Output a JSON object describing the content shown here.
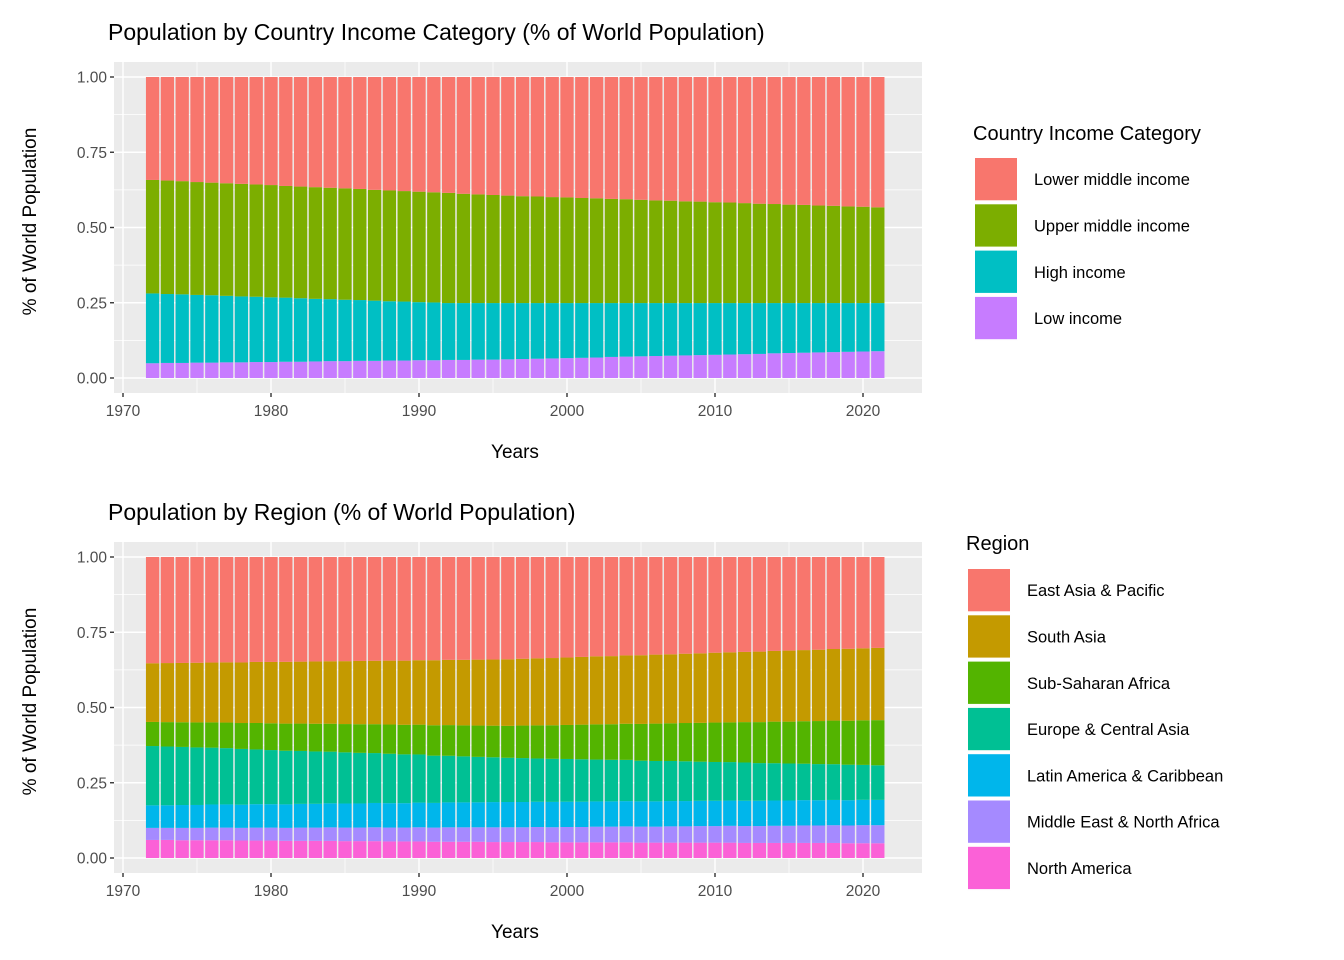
{
  "chart_data": [
    {
      "type": "bar",
      "stacked": true,
      "title": "Population by Country Income Category (% of World Population)",
      "xlabel": "Years",
      "ylabel": "% of World Population",
      "xlim": [
        1970,
        2023
      ],
      "ylim": [
        0,
        1
      ],
      "x_ticks": [
        "1970",
        "1980",
        "1990",
        "2000",
        "2010",
        "2020"
      ],
      "y_ticks": [
        "0.00",
        "0.25",
        "0.50",
        "0.75",
        "1.00"
      ],
      "grid": true,
      "legend_title": "Country Income Category",
      "legend_position": "right",
      "x": [
        1972,
        1973,
        1974,
        1975,
        1976,
        1977,
        1978,
        1979,
        1980,
        1981,
        1982,
        1983,
        1984,
        1985,
        1986,
        1987,
        1988,
        1989,
        1990,
        1991,
        1992,
        1993,
        1994,
        1995,
        1996,
        1997,
        1998,
        1999,
        2000,
        2001,
        2002,
        2003,
        2004,
        2005,
        2006,
        2007,
        2008,
        2009,
        2010,
        2011,
        2012,
        2013,
        2014,
        2015,
        2016,
        2017,
        2018,
        2019,
        2020,
        2021
      ],
      "series": [
        {
          "name": "Lower middle income",
          "color": "#F8766D",
          "values": [
            0.342,
            0.344,
            0.346,
            0.349,
            0.351,
            0.353,
            0.355,
            0.357,
            0.359,
            0.362,
            0.364,
            0.366,
            0.368,
            0.37,
            0.372,
            0.375,
            0.377,
            0.379,
            0.381,
            0.383,
            0.385,
            0.388,
            0.39,
            0.392,
            0.394,
            0.396,
            0.397,
            0.399,
            0.4,
            0.402,
            0.403,
            0.405,
            0.406,
            0.408,
            0.41,
            0.411,
            0.413,
            0.414,
            0.416,
            0.417,
            0.419,
            0.421,
            0.422,
            0.424,
            0.425,
            0.427,
            0.428,
            0.43,
            0.431,
            0.433
          ]
        },
        {
          "name": "Upper middle income",
          "color": "#7CAE00",
          "values": [
            0.377,
            0.377,
            0.376,
            0.375,
            0.374,
            0.374,
            0.374,
            0.373,
            0.373,
            0.371,
            0.371,
            0.371,
            0.37,
            0.37,
            0.369,
            0.368,
            0.368,
            0.367,
            0.367,
            0.366,
            0.366,
            0.363,
            0.361,
            0.359,
            0.357,
            0.355,
            0.354,
            0.352,
            0.351,
            0.349,
            0.348,
            0.346,
            0.345,
            0.343,
            0.341,
            0.34,
            0.338,
            0.337,
            0.335,
            0.334,
            0.332,
            0.33,
            0.329,
            0.327,
            0.326,
            0.324,
            0.323,
            0.321,
            0.32,
            0.318
          ]
        },
        {
          "name": "High income",
          "color": "#00BFC4",
          "values": [
            0.232,
            0.229,
            0.228,
            0.225,
            0.224,
            0.221,
            0.219,
            0.217,
            0.215,
            0.213,
            0.211,
            0.208,
            0.206,
            0.204,
            0.202,
            0.2,
            0.197,
            0.196,
            0.193,
            0.192,
            0.189,
            0.189,
            0.188,
            0.188,
            0.187,
            0.186,
            0.185,
            0.184,
            0.183,
            0.182,
            0.181,
            0.179,
            0.178,
            0.177,
            0.176,
            0.175,
            0.174,
            0.173,
            0.172,
            0.171,
            0.17,
            0.169,
            0.167,
            0.166,
            0.165,
            0.164,
            0.163,
            0.162,
            0.161,
            0.16
          ]
        },
        {
          "name": "Low income",
          "color": "#C77CFF",
          "values": [
            0.049,
            0.05,
            0.05,
            0.051,
            0.051,
            0.052,
            0.052,
            0.053,
            0.053,
            0.054,
            0.054,
            0.055,
            0.056,
            0.056,
            0.057,
            0.057,
            0.058,
            0.058,
            0.059,
            0.059,
            0.06,
            0.06,
            0.061,
            0.061,
            0.062,
            0.063,
            0.064,
            0.065,
            0.066,
            0.067,
            0.068,
            0.07,
            0.071,
            0.072,
            0.073,
            0.074,
            0.075,
            0.076,
            0.077,
            0.078,
            0.079,
            0.08,
            0.082,
            0.083,
            0.084,
            0.085,
            0.086,
            0.087,
            0.088,
            0.089
          ]
        }
      ]
    },
    {
      "type": "bar",
      "stacked": true,
      "title": "Population by Region (% of World Population)",
      "xlabel": "Years",
      "ylabel": "% of World Population",
      "xlim": [
        1970,
        2023
      ],
      "ylim": [
        0,
        1
      ],
      "x_ticks": [
        "1970",
        "1980",
        "1990",
        "2000",
        "2010",
        "2020"
      ],
      "y_ticks": [
        "0.00",
        "0.25",
        "0.50",
        "0.75",
        "1.00"
      ],
      "grid": true,
      "legend_title": "Region",
      "legend_position": "right",
      "x": [
        1972,
        1973,
        1974,
        1975,
        1976,
        1977,
        1978,
        1979,
        1980,
        1981,
        1982,
        1983,
        1984,
        1985,
        1986,
        1987,
        1988,
        1989,
        1990,
        1991,
        1992,
        1993,
        1994,
        1995,
        1996,
        1997,
        1998,
        1999,
        2000,
        2001,
        2002,
        2003,
        2004,
        2005,
        2006,
        2007,
        2008,
        2009,
        2010,
        2011,
        2012,
        2013,
        2014,
        2015,
        2016,
        2017,
        2018,
        2019,
        2020,
        2021
      ],
      "series": [
        {
          "name": "East Asia & Pacific",
          "color": "#F8766D",
          "values": [
            0.353,
            0.352,
            0.352,
            0.351,
            0.351,
            0.35,
            0.35,
            0.349,
            0.349,
            0.348,
            0.348,
            0.347,
            0.347,
            0.346,
            0.345,
            0.345,
            0.344,
            0.344,
            0.343,
            0.343,
            0.342,
            0.342,
            0.341,
            0.341,
            0.34,
            0.338,
            0.337,
            0.335,
            0.334,
            0.332,
            0.33,
            0.329,
            0.327,
            0.326,
            0.324,
            0.323,
            0.321,
            0.32,
            0.318,
            0.317,
            0.315,
            0.314,
            0.312,
            0.311,
            0.309,
            0.308,
            0.306,
            0.305,
            0.303,
            0.302
          ]
        },
        {
          "name": "South Asia",
          "color": "#C49A00",
          "values": [
            0.195,
            0.196,
            0.197,
            0.198,
            0.199,
            0.2,
            0.201,
            0.203,
            0.204,
            0.205,
            0.206,
            0.207,
            0.208,
            0.209,
            0.21,
            0.211,
            0.212,
            0.213,
            0.214,
            0.216,
            0.217,
            0.218,
            0.219,
            0.22,
            0.221,
            0.222,
            0.223,
            0.223,
            0.224,
            0.225,
            0.226,
            0.226,
            0.227,
            0.228,
            0.229,
            0.229,
            0.23,
            0.231,
            0.232,
            0.233,
            0.233,
            0.234,
            0.235,
            0.236,
            0.236,
            0.237,
            0.238,
            0.239,
            0.239,
            0.24
          ]
        },
        {
          "name": "Sub-Saharan Africa",
          "color": "#53B400",
          "values": [
            0.08,
            0.081,
            0.082,
            0.083,
            0.084,
            0.085,
            0.086,
            0.088,
            0.089,
            0.09,
            0.091,
            0.092,
            0.093,
            0.094,
            0.095,
            0.096,
            0.097,
            0.098,
            0.099,
            0.101,
            0.102,
            0.103,
            0.104,
            0.105,
            0.106,
            0.108,
            0.11,
            0.111,
            0.113,
            0.115,
            0.117,
            0.118,
            0.12,
            0.122,
            0.124,
            0.125,
            0.127,
            0.129,
            0.131,
            0.132,
            0.134,
            0.136,
            0.138,
            0.139,
            0.141,
            0.143,
            0.145,
            0.146,
            0.148,
            0.15
          ]
        },
        {
          "name": "Europe & Central Asia",
          "color": "#00C094",
          "values": [
            0.197,
            0.195,
            0.193,
            0.191,
            0.189,
            0.187,
            0.185,
            0.182,
            0.18,
            0.178,
            0.176,
            0.174,
            0.172,
            0.17,
            0.168,
            0.166,
            0.164,
            0.162,
            0.16,
            0.157,
            0.155,
            0.153,
            0.151,
            0.149,
            0.147,
            0.146,
            0.144,
            0.143,
            0.142,
            0.141,
            0.139,
            0.138,
            0.137,
            0.135,
            0.134,
            0.133,
            0.132,
            0.13,
            0.129,
            0.128,
            0.127,
            0.125,
            0.124,
            0.123,
            0.121,
            0.12,
            0.119,
            0.118,
            0.116,
            0.115
          ]
        },
        {
          "name": "Latin America & Caribbean",
          "color": "#00B6EB",
          "values": [
            0.075,
            0.075,
            0.076,
            0.076,
            0.077,
            0.077,
            0.077,
            0.078,
            0.078,
            0.078,
            0.079,
            0.079,
            0.08,
            0.08,
            0.08,
            0.081,
            0.081,
            0.081,
            0.082,
            0.082,
            0.083,
            0.083,
            0.083,
            0.084,
            0.084,
            0.084,
            0.084,
            0.084,
            0.084,
            0.084,
            0.084,
            0.084,
            0.084,
            0.084,
            0.084,
            0.084,
            0.084,
            0.084,
            0.084,
            0.084,
            0.084,
            0.084,
            0.084,
            0.084,
            0.084,
            0.084,
            0.084,
            0.084,
            0.084,
            0.084
          ]
        },
        {
          "name": "Middle East & North Africa",
          "color": "#A58AFF",
          "values": [
            0.04,
            0.04,
            0.041,
            0.041,
            0.042,
            0.042,
            0.042,
            0.043,
            0.043,
            0.043,
            0.044,
            0.044,
            0.045,
            0.045,
            0.045,
            0.046,
            0.046,
            0.046,
            0.047,
            0.047,
            0.048,
            0.048,
            0.048,
            0.049,
            0.049,
            0.049,
            0.05,
            0.05,
            0.051,
            0.051,
            0.052,
            0.052,
            0.053,
            0.053,
            0.053,
            0.054,
            0.054,
            0.055,
            0.055,
            0.056,
            0.056,
            0.056,
            0.057,
            0.057,
            0.058,
            0.058,
            0.059,
            0.059,
            0.06,
            0.06
          ]
        },
        {
          "name": "North America",
          "color": "#FB61D7",
          "values": [
            0.06,
            0.06,
            0.059,
            0.059,
            0.059,
            0.059,
            0.058,
            0.058,
            0.058,
            0.057,
            0.057,
            0.057,
            0.057,
            0.056,
            0.056,
            0.056,
            0.055,
            0.055,
            0.055,
            0.054,
            0.054,
            0.054,
            0.054,
            0.053,
            0.053,
            0.053,
            0.053,
            0.052,
            0.052,
            0.052,
            0.052,
            0.052,
            0.052,
            0.051,
            0.051,
            0.051,
            0.051,
            0.051,
            0.051,
            0.051,
            0.05,
            0.05,
            0.05,
            0.05,
            0.05,
            0.05,
            0.05,
            0.049,
            0.049,
            0.049
          ]
        }
      ]
    }
  ]
}
